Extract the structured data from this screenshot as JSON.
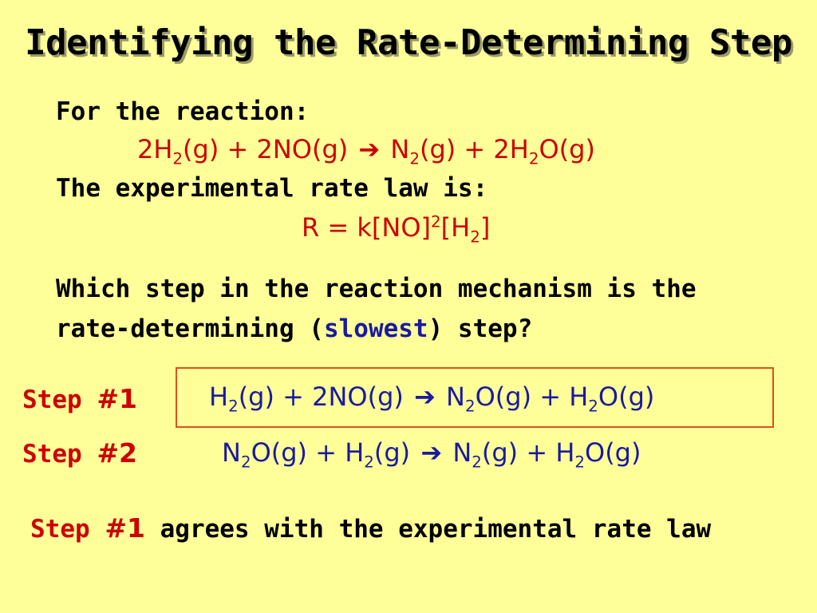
{
  "slide": {
    "title": "Identifying the Rate-Determining Step",
    "intro": "For the reaction:",
    "overall_reaction": {
      "r1_coef": "2H",
      "r1_sub": "2",
      "r1_state": "(g) + 2NO(g)",
      "arrow": "➔",
      "p1": " N",
      "p1_sub": "2",
      "p1_state": "(g) + 2H",
      "p2_sub": "2",
      "p2_state": "O(g)"
    },
    "rate_law_label": "The experimental rate law is:",
    "rate_law": {
      "prefix": "R = k[NO]",
      "sup": "2",
      "mid": "[H",
      "sub": "2",
      "suffix": "]"
    },
    "question_line1": "Which step in the reaction mechanism is the",
    "question_line2_a": "rate-determining (",
    "question_line2_b": "slowest",
    "question_line2_c": ") step?",
    "step1": {
      "label": "Step ",
      "num": "#1",
      "eq": {
        "a": "H",
        "a_sub": "2",
        "b": "(g) + 2NO(g)",
        "arrow": "➔",
        "c": " N",
        "c_sub": "2",
        "d": "O(g) + H",
        "d_sub": "2",
        "e": "O(g)"
      }
    },
    "step2": {
      "label": "Step ",
      "num": "#2",
      "eq": {
        "a": "N",
        "a_sub": "2",
        "b": "O(g) + H",
        "b_sub": "2",
        "c": "(g)",
        "arrow": "➔",
        "d": " N",
        "d_sub": "2",
        "e": "(g) + H",
        "e_sub": "2",
        "f": "O(g)"
      }
    },
    "conclusion": {
      "label": "Step ",
      "num": "#1",
      "text": " agrees with the experimental rate law"
    }
  }
}
